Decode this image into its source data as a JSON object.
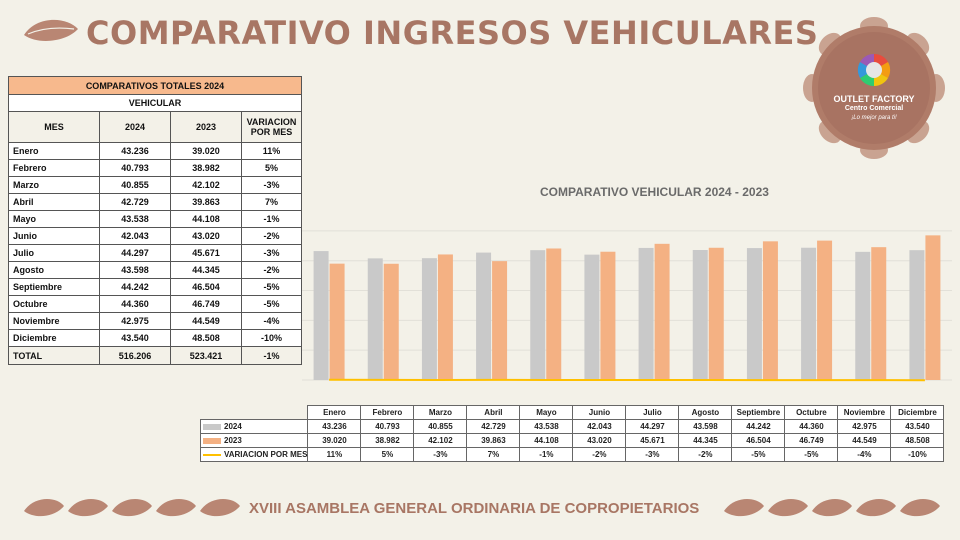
{
  "header": {
    "title": "COMPARATIVO INGRESOS VEHICULARES"
  },
  "logo": {
    "line1": "OUTLET FACTORY",
    "line2": "Centro Comercial",
    "line3": "¡Lo mejor para ti!"
  },
  "summary": {
    "band": "COMPARATIVOS TOTALES 2024",
    "sub": "VEHICULAR",
    "headers": [
      "MES",
      "2024",
      "2023",
      "VARIACION POR MES"
    ],
    "rows": [
      [
        "Enero",
        "43.236",
        "39.020",
        "11%"
      ],
      [
        "Febrero",
        "40.793",
        "38.982",
        "5%"
      ],
      [
        "Marzo",
        "40.855",
        "42.102",
        "-3%"
      ],
      [
        "Abril",
        "42.729",
        "39.863",
        "7%"
      ],
      [
        "Mayo",
        "43.538",
        "44.108",
        "-1%"
      ],
      [
        "Junio",
        "42.043",
        "43.020",
        "-2%"
      ],
      [
        "Julio",
        "44.297",
        "45.671",
        "-3%"
      ],
      [
        "Agosto",
        "43.598",
        "44.345",
        "-2%"
      ],
      [
        "Septiembre",
        "44.242",
        "46.504",
        "-5%"
      ],
      [
        "Octubre",
        "44.360",
        "46.749",
        "-5%"
      ],
      [
        "Noviembre",
        "42.975",
        "44.549",
        "-4%"
      ],
      [
        "Diciembre",
        "43.540",
        "48.508",
        "-10%"
      ]
    ],
    "total": [
      "TOTAL",
      "516.206",
      "523.421",
      "-1%"
    ]
  },
  "chart_data": {
    "type": "bar",
    "title": "COMPARATIVO  VEHICULAR 2024 - 2023",
    "categories": [
      "Enero",
      "Febrero",
      "Marzo",
      "Abril",
      "Mayo",
      "Junio",
      "Julio",
      "Agosto",
      "Septiembre",
      "Octubre",
      "Noviembre",
      "Diciembre"
    ],
    "series": [
      {
        "name": "2024",
        "values": [
          43236,
          40793,
          40855,
          42729,
          43538,
          42043,
          44297,
          43598,
          44242,
          44360,
          42975,
          43540
        ],
        "labels": [
          "43.236",
          "40.793",
          "40.855",
          "42.729",
          "43.538",
          "42.043",
          "44.297",
          "43.598",
          "44.242",
          "44.360",
          "42.975",
          "43.540"
        ],
        "color": "#c9c9c9"
      },
      {
        "name": "2023",
        "values": [
          39020,
          38982,
          42102,
          39863,
          44108,
          43020,
          45671,
          44345,
          46504,
          46749,
          44549,
          48508
        ],
        "labels": [
          "39.020",
          "38.982",
          "42.102",
          "39.863",
          "44.108",
          "43.020",
          "45.671",
          "44.345",
          "46.504",
          "46.749",
          "44.549",
          "48.508"
        ],
        "color": "#f4b183"
      },
      {
        "name": "VARIACION POR MES",
        "type": "line",
        "values": [
          0.11,
          0.05,
          -0.03,
          0.07,
          -0.01,
          -0.02,
          -0.03,
          -0.02,
          -0.05,
          -0.05,
          -0.04,
          -0.1
        ],
        "labels": [
          "11%",
          "5%",
          "-3%",
          "7%",
          "-1%",
          "-2%",
          "-3%",
          "-2%",
          "-5%",
          "-5%",
          "-4%",
          "-10%"
        ],
        "color": "#ffc000"
      }
    ],
    "ylim": [
      0,
      55000
    ],
    "grid": true,
    "legend": "bottom data table"
  },
  "footer": {
    "text": "XVIII ASAMBLEA GENERAL ORDINARIA DE COPROPIETARIOS"
  },
  "colors": {
    "accent": "#a87664",
    "bar2024": "#c9c9c9",
    "bar2023": "#f4b183",
    "line": "#ffc000",
    "header_band": "#f7b98d"
  }
}
